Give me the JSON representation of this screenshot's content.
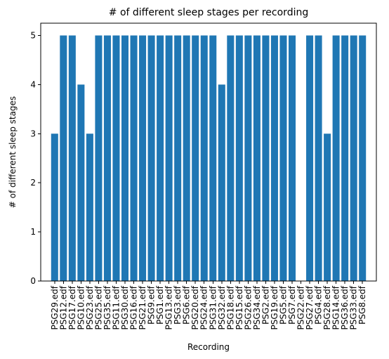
{
  "chart_data": {
    "type": "bar",
    "title": "# of different sleep stages per recording",
    "xlabel": "Recording",
    "ylabel": "# of different sleep stages",
    "ylim": [
      0,
      5.25
    ],
    "yticks": [
      0,
      1,
      2,
      3,
      4,
      5
    ],
    "grid": false,
    "categories": [
      "PSG29.edf",
      "PSG12.edf",
      "PSG17.edf",
      "PSG10.edf",
      "PSG23.edf",
      "PSG25.edf",
      "PSG35.edf",
      "PSG11.edf",
      "PSG30.edf",
      "PSG16.edf",
      "PSG21.edf",
      "PSG9.edf",
      "PSG1.edf",
      "PSG13.edf",
      "PSG3.edf",
      "PSG6.edf",
      "PSG20.edf",
      "PSG24.edf",
      "PSG31.edf",
      "PSG32.edf",
      "PSG18.edf",
      "PSG15.edf",
      "PSG26.edf",
      "PSG34.edf",
      "PSG2.edf",
      "PSG19.edf",
      "PSG5.edf",
      "PSG7.edf",
      "PSG22.edf",
      "PSG27.edf",
      "PSG4.edf",
      "PSG28.edf",
      "PSG14.edf",
      "PSG36.edf",
      "PSG33.edf",
      "PSG8.edf"
    ],
    "values": [
      3,
      5,
      5,
      4,
      3,
      5,
      5,
      5,
      5,
      5,
      5,
      5,
      5,
      5,
      5,
      5,
      5,
      5,
      5,
      4,
      5,
      5,
      5,
      5,
      5,
      5,
      5,
      5,
      0,
      5,
      5,
      3,
      5,
      5,
      5,
      5
    ],
    "bar_color": "#1f77b4"
  }
}
